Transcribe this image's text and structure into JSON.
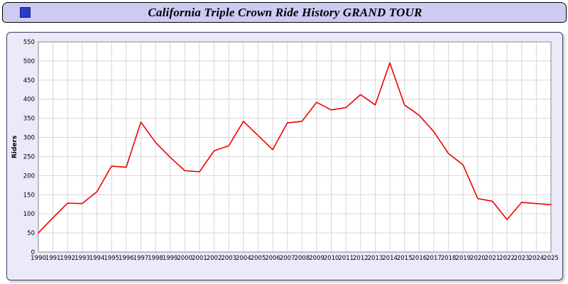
{
  "header": {
    "title": "California Triple Crown Ride History GRAND TOUR",
    "icon": "blue-square-icon"
  },
  "colors": {
    "header_bg": "#ccccf2",
    "panel_bg": "#eaeaf8",
    "plot_bg": "#ffffff",
    "gridline": "#d6d6d6",
    "axis": "#8a8a8a",
    "line": "#ee0000",
    "text": "#000000"
  },
  "chart_data": {
    "type": "line",
    "title": "California Triple Crown Ride History GRAND TOUR",
    "xlabel": "",
    "ylabel": "Riders",
    "ylim": [
      0,
      550
    ],
    "ytick_step": 50,
    "grid": true,
    "legend_position": "none",
    "line_color": "#ee0000",
    "categories": [
      "1990",
      "1991",
      "1992",
      "1993",
      "1994",
      "1995",
      "1996",
      "1997",
      "1998",
      "1999",
      "2000",
      "2001",
      "2002",
      "2003",
      "2004",
      "2005",
      "2006",
      "2007",
      "2008",
      "2009",
      "2010",
      "2011",
      "2012",
      "2013",
      "2014",
      "2015",
      "2016",
      "2017",
      "2018",
      "2019",
      "2020",
      "2021",
      "2022",
      "2023",
      "2024",
      "2025"
    ],
    "values": [
      50,
      90,
      128,
      127,
      158,
      225,
      222,
      340,
      287,
      248,
      213,
      210,
      265,
      278,
      342,
      305,
      268,
      338,
      342,
      392,
      372,
      378,
      412,
      385,
      495,
      385,
      358,
      315,
      258,
      228,
      140,
      133,
      85,
      130,
      127,
      124
    ]
  }
}
